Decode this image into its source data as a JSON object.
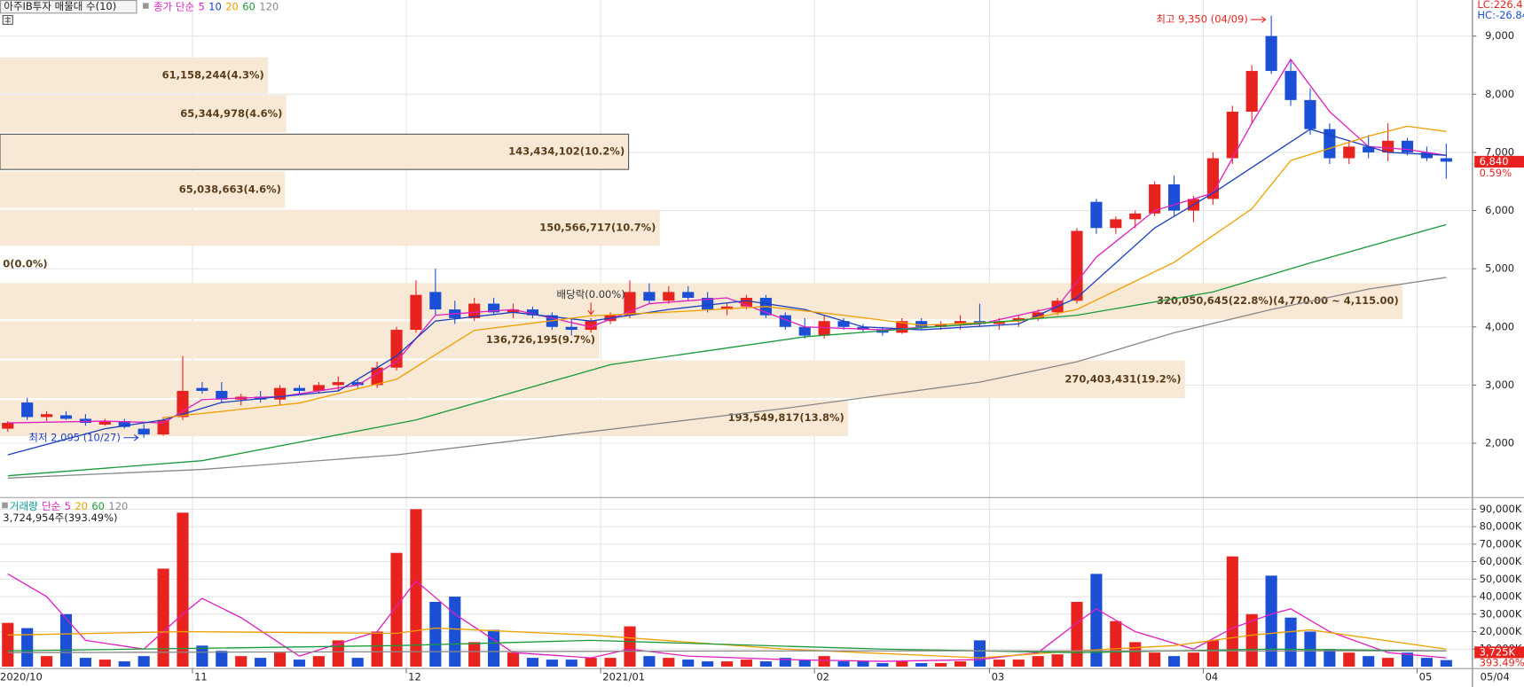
{
  "legend": {
    "title": "아주IB투자 매물대 수(10)",
    "price_label": "종가 단순"
  },
  "indicators": {
    "lc": "LC:226.4",
    "hc": "HC:-26.84"
  },
  "chart_data": {
    "type": "candlestick",
    "up_color": "#e8231f",
    "down_color": "#1a4fd6",
    "categories": [
      "2020/10",
      null,
      null,
      null,
      null,
      null,
      null,
      null,
      null,
      null,
      "11",
      null,
      null,
      null,
      null,
      null,
      null,
      null,
      null,
      null,
      null,
      "12",
      null,
      null,
      null,
      null,
      null,
      null,
      null,
      null,
      null,
      "2021/01",
      null,
      null,
      null,
      null,
      null,
      null,
      null,
      null,
      null,
      null,
      "02",
      null,
      null,
      null,
      null,
      null,
      null,
      null,
      null,
      "03",
      null,
      null,
      null,
      null,
      null,
      null,
      null,
      null,
      null,
      null,
      "04",
      null,
      null,
      null,
      null,
      null,
      null,
      null,
      null,
      null,
      null,
      "05",
      null
    ],
    "last_date": "05/04",
    "ohlc": [
      [
        2250,
        2380,
        2200,
        2350
      ],
      [
        2700,
        2780,
        2400,
        2450
      ],
      [
        2450,
        2550,
        2380,
        2500
      ],
      [
        2480,
        2550,
        2400,
        2420
      ],
      [
        2420,
        2500,
        2300,
        2350
      ],
      [
        2320,
        2420,
        2300,
        2380
      ],
      [
        2380,
        2420,
        2250,
        2280
      ],
      [
        2250,
        2330,
        2095,
        2150
      ],
      [
        2150,
        2450,
        2130,
        2400
      ],
      [
        2450,
        3500,
        2400,
        2900
      ],
      [
        2950,
        3050,
        2850,
        2900
      ],
      [
        2900,
        3050,
        2700,
        2750
      ],
      [
        2750,
        2850,
        2650,
        2800
      ],
      [
        2800,
        2900,
        2700,
        2750
      ],
      [
        2750,
        3000,
        2650,
        2950
      ],
      [
        2950,
        3000,
        2850,
        2900
      ],
      [
        2900,
        3050,
        2850,
        3000
      ],
      [
        3000,
        3150,
        2900,
        3050
      ],
      [
        3050,
        3100,
        2950,
        3000
      ],
      [
        3000,
        3400,
        2950,
        3300
      ],
      [
        3300,
        4000,
        3250,
        3950
      ],
      [
        3950,
        4800,
        3900,
        4550
      ],
      [
        4600,
        5000,
        4200,
        4300
      ],
      [
        4300,
        4450,
        4050,
        4150
      ],
      [
        4150,
        4500,
        4100,
        4400
      ],
      [
        4400,
        4500,
        4200,
        4250
      ],
      [
        4250,
        4400,
        4150,
        4300
      ],
      [
        4300,
        4350,
        4150,
        4200
      ],
      [
        4200,
        4250,
        3950,
        4000
      ],
      [
        4000,
        4150,
        3850,
        3950
      ],
      [
        3950,
        4150,
        3900,
        4100
      ],
      [
        4100,
        4250,
        4050,
        4200
      ],
      [
        4200,
        4800,
        4150,
        4600
      ],
      [
        4600,
        4750,
        4400,
        4450
      ],
      [
        4450,
        4700,
        4400,
        4600
      ],
      [
        4600,
        4700,
        4450,
        4500
      ],
      [
        4500,
        4600,
        4250,
        4300
      ],
      [
        4300,
        4400,
        4200,
        4350
      ],
      [
        4350,
        4550,
        4300,
        4500
      ],
      [
        4500,
        4550,
        4150,
        4200
      ],
      [
        4200,
        4250,
        3950,
        4000
      ],
      [
        4000,
        4150,
        3800,
        3850
      ],
      [
        3850,
        4200,
        3800,
        4100
      ],
      [
        4100,
        4150,
        3950,
        4000
      ],
      [
        4000,
        4050,
        3900,
        3950
      ],
      [
        3950,
        4000,
        3850,
        3900
      ],
      [
        3900,
        4150,
        3880,
        4100
      ],
      [
        4100,
        4150,
        3950,
        4000
      ],
      [
        4000,
        4100,
        3950,
        4050
      ],
      [
        4050,
        4200,
        3950,
        4100
      ],
      [
        4100,
        4400,
        4000,
        4050
      ],
      [
        4050,
        4150,
        3950,
        4100
      ],
      [
        4100,
        4200,
        4000,
        4150
      ],
      [
        4150,
        4300,
        4100,
        4250
      ],
      [
        4250,
        4500,
        4200,
        4450
      ],
      [
        4450,
        5700,
        4400,
        5650
      ],
      [
        6150,
        6200,
        5600,
        5700
      ],
      [
        5700,
        5900,
        5600,
        5850
      ],
      [
        5850,
        6000,
        5700,
        5950
      ],
      [
        5950,
        6500,
        5900,
        6450
      ],
      [
        6450,
        6600,
        5900,
        6000
      ],
      [
        6000,
        6250,
        5800,
        6200
      ],
      [
        6200,
        7000,
        6100,
        6900
      ],
      [
        6900,
        7800,
        6800,
        7700
      ],
      [
        7700,
        8500,
        7500,
        8400
      ],
      [
        9000,
        9350,
        8350,
        8400
      ],
      [
        8400,
        8600,
        7800,
        7900
      ],
      [
        7900,
        8100,
        7300,
        7400
      ],
      [
        7400,
        7500,
        6800,
        6900
      ],
      [
        6900,
        7200,
        6800,
        7100
      ],
      [
        7100,
        7300,
        6900,
        7000
      ],
      [
        7000,
        7500,
        6850,
        7200
      ],
      [
        7200,
        7250,
        6950,
        7000
      ],
      [
        7000,
        7100,
        6850,
        6900
      ],
      [
        6900,
        7150,
        6550,
        6840
      ]
    ],
    "ylim": [
      1100,
      9620
    ],
    "yticks": [
      {
        "value": 2000,
        "label": "2,000"
      },
      {
        "value": 3000,
        "label": "3,000"
      },
      {
        "value": 4000,
        "label": "4,000"
      },
      {
        "value": 5000,
        "label": "5,000"
      },
      {
        "value": 6000,
        "label": "6,000"
      },
      {
        "value": 7000,
        "label": "7,000"
      },
      {
        "value": 8000,
        "label": "8,000"
      },
      {
        "value": 9000,
        "label": "9,000"
      }
    ],
    "grid": true,
    "ma": [
      {
        "name": "5",
        "color": "#e020c0",
        "x": [
          0,
          5,
          8,
          10,
          14,
          18,
          20,
          22,
          26,
          30,
          33,
          37,
          41,
          45,
          50,
          54,
          56,
          59,
          62,
          64,
          66,
          68,
          70,
          72,
          74
        ],
        "values": [
          2350,
          2380,
          2350,
          2750,
          2800,
          3000,
          3400,
          4200,
          4300,
          4000,
          4400,
          4500,
          4000,
          3950,
          4050,
          4350,
          5200,
          6000,
          6300,
          7500,
          8600,
          7700,
          7100,
          7050,
          6950
        ]
      },
      {
        "name": "10",
        "color": "#1a3fc0",
        "x": [
          0,
          5,
          8,
          11,
          17,
          20,
          22,
          26,
          30,
          34,
          38,
          41,
          44,
          47,
          52,
          55,
          59,
          62,
          67,
          71,
          74
        ],
        "values": [
          1800,
          2250,
          2400,
          2700,
          2900,
          3500,
          4100,
          4250,
          4100,
          4300,
          4450,
          4300,
          4000,
          3950,
          4050,
          4500,
          5700,
          6300,
          7400,
          7000,
          6950
        ]
      },
      {
        "name": "20",
        "color": "#f0a000",
        "x": [
          8,
          15,
          20,
          22,
          24,
          30,
          35,
          39,
          43,
          47,
          52,
          55,
          60,
          64,
          66,
          70,
          72,
          74
        ],
        "values": [
          2440,
          2690,
          3100,
          3520,
          3940,
          4190,
          4270,
          4350,
          4200,
          4030,
          4100,
          4300,
          5110,
          6030,
          6860,
          7280,
          7450,
          7360
        ]
      },
      {
        "name": "60",
        "color": "#1a9a3a",
        "x": [
          0,
          10,
          21,
          31,
          41,
          50,
          55,
          62,
          67,
          74
        ],
        "values": [
          1440,
          1700,
          2400,
          3350,
          3830,
          4060,
          4200,
          4600,
          5100,
          5760
        ]
      },
      {
        "name": "120",
        "color": "#888888",
        "x": [
          0,
          10,
          20,
          30,
          40,
          50,
          55,
          60,
          65,
          70,
          74
        ],
        "values": [
          1400,
          1550,
          1800,
          2200,
          2600,
          3050,
          3400,
          3900,
          4300,
          4650,
          4850
        ]
      }
    ],
    "profile": {
      "bins": [
        2105,
        2760,
        3440,
        4115,
        4770,
        5380,
        6030,
        6690,
        7330,
        8000,
        8650
      ],
      "values": [
        193549817,
        270403431,
        136726195,
        320050645,
        0,
        150566717,
        65038663,
        143434102,
        65344978,
        61158244
      ],
      "value_labels": [
        "193,549,817(13.8%)",
        "270,403,431(19.2%)",
        "136,726,195(9.7%)",
        "320,050,645(22.8%)(4,770.00 ~ 4,115.00)",
        "0(0.0%)",
        "150,566,717(10.7%)",
        "65,038,663(4.6%)",
        "143,434,102(10.2%)",
        "65,344,978(4.6%)",
        "61,158,244(4.3%)"
      ],
      "xlim": [
        0,
        336000000
      ],
      "color": "#f7e9d6",
      "highlight": 7
    },
    "annotations": {
      "high": "최고 9,350 (04/09)",
      "low": "최저 2,095 (10/27)",
      "dividend": "배당락(0.00%)"
    },
    "last_price": {
      "value": 6840,
      "label": "6,840",
      "change": "0.59%"
    },
    "volume": {
      "label": "거래량",
      "ma_label": "단순",
      "summary": "3,724,954주(393.49%)",
      "values": [
        25000,
        22000,
        6000,
        30000,
        5000,
        4000,
        3000,
        6000,
        56000,
        88000,
        12000,
        9000,
        6000,
        5000,
        8000,
        4000,
        6000,
        15000,
        5000,
        20000,
        65000,
        90000,
        37000,
        40000,
        14000,
        21000,
        8000,
        5000,
        4000,
        4000,
        5000,
        5000,
        23000,
        6000,
        5000,
        4000,
        3000,
        3000,
        4000,
        3000,
        5000,
        4000,
        6000,
        3000,
        3000,
        2000,
        3000,
        2000,
        2000,
        3000,
        15000,
        4000,
        4000,
        6000,
        7000,
        37000,
        53000,
        26000,
        14000,
        8000,
        6000,
        8000,
        15000,
        63000,
        30000,
        52000,
        28000,
        20000,
        10000,
        8000,
        6000,
        5000,
        8000,
        5000,
        3725
      ],
      "ylim": [
        0,
        95000
      ],
      "yticks": [
        {
          "value": 10000,
          "label": "10,000K"
        },
        {
          "value": 20000,
          "label": "20,000K"
        },
        {
          "value": 30000,
          "label": "30,000K"
        },
        {
          "value": 40000,
          "label": "40,000K"
        },
        {
          "value": 50000,
          "label": "50,000K"
        },
        {
          "value": 60000,
          "label": "60,000K"
        },
        {
          "value": 70000,
          "label": "70,000K"
        },
        {
          "value": 80000,
          "label": "80,000K"
        },
        {
          "value": 90000,
          "label": "90,000K"
        }
      ],
      "last": {
        "value": 3725,
        "label": "3,725K",
        "change": "393.49%"
      },
      "ma": [
        {
          "name": "5",
          "color": "#e020c0",
          "x": [
            0,
            2,
            4,
            7,
            9,
            10,
            12,
            15,
            19,
            21,
            23,
            26,
            30,
            32,
            35,
            40,
            45,
            50,
            53,
            55,
            56,
            58,
            61,
            63,
            65,
            66,
            68,
            71,
            74
          ],
          "values": [
            53000,
            40000,
            15000,
            10000,
            30000,
            39000,
            28000,
            6000,
            20000,
            49000,
            30000,
            8000,
            5000,
            10000,
            6000,
            4000,
            3000,
            4000,
            8000,
            25000,
            33000,
            20000,
            10000,
            22000,
            30000,
            33000,
            20000,
            8000,
            5000
          ]
        },
        {
          "name": "20",
          "color": "#f0a000",
          "x": [
            0,
            9,
            20,
            22,
            30,
            40,
            50,
            55,
            60,
            64,
            67,
            74
          ],
          "values": [
            18000,
            20000,
            19000,
            22000,
            18000,
            10000,
            5000,
            9000,
            12000,
            18000,
            21000,
            10000
          ]
        },
        {
          "name": "60",
          "color": "#1a9a3a",
          "x": [
            0,
            20,
            30,
            45,
            55,
            65,
            74
          ],
          "values": [
            9000,
            12000,
            15000,
            10000,
            8000,
            10000,
            9000
          ]
        },
        {
          "name": "120",
          "color": "#888888",
          "x": [
            0,
            40,
            74
          ],
          "values": [
            8000,
            9000,
            9000
          ]
        }
      ]
    }
  }
}
